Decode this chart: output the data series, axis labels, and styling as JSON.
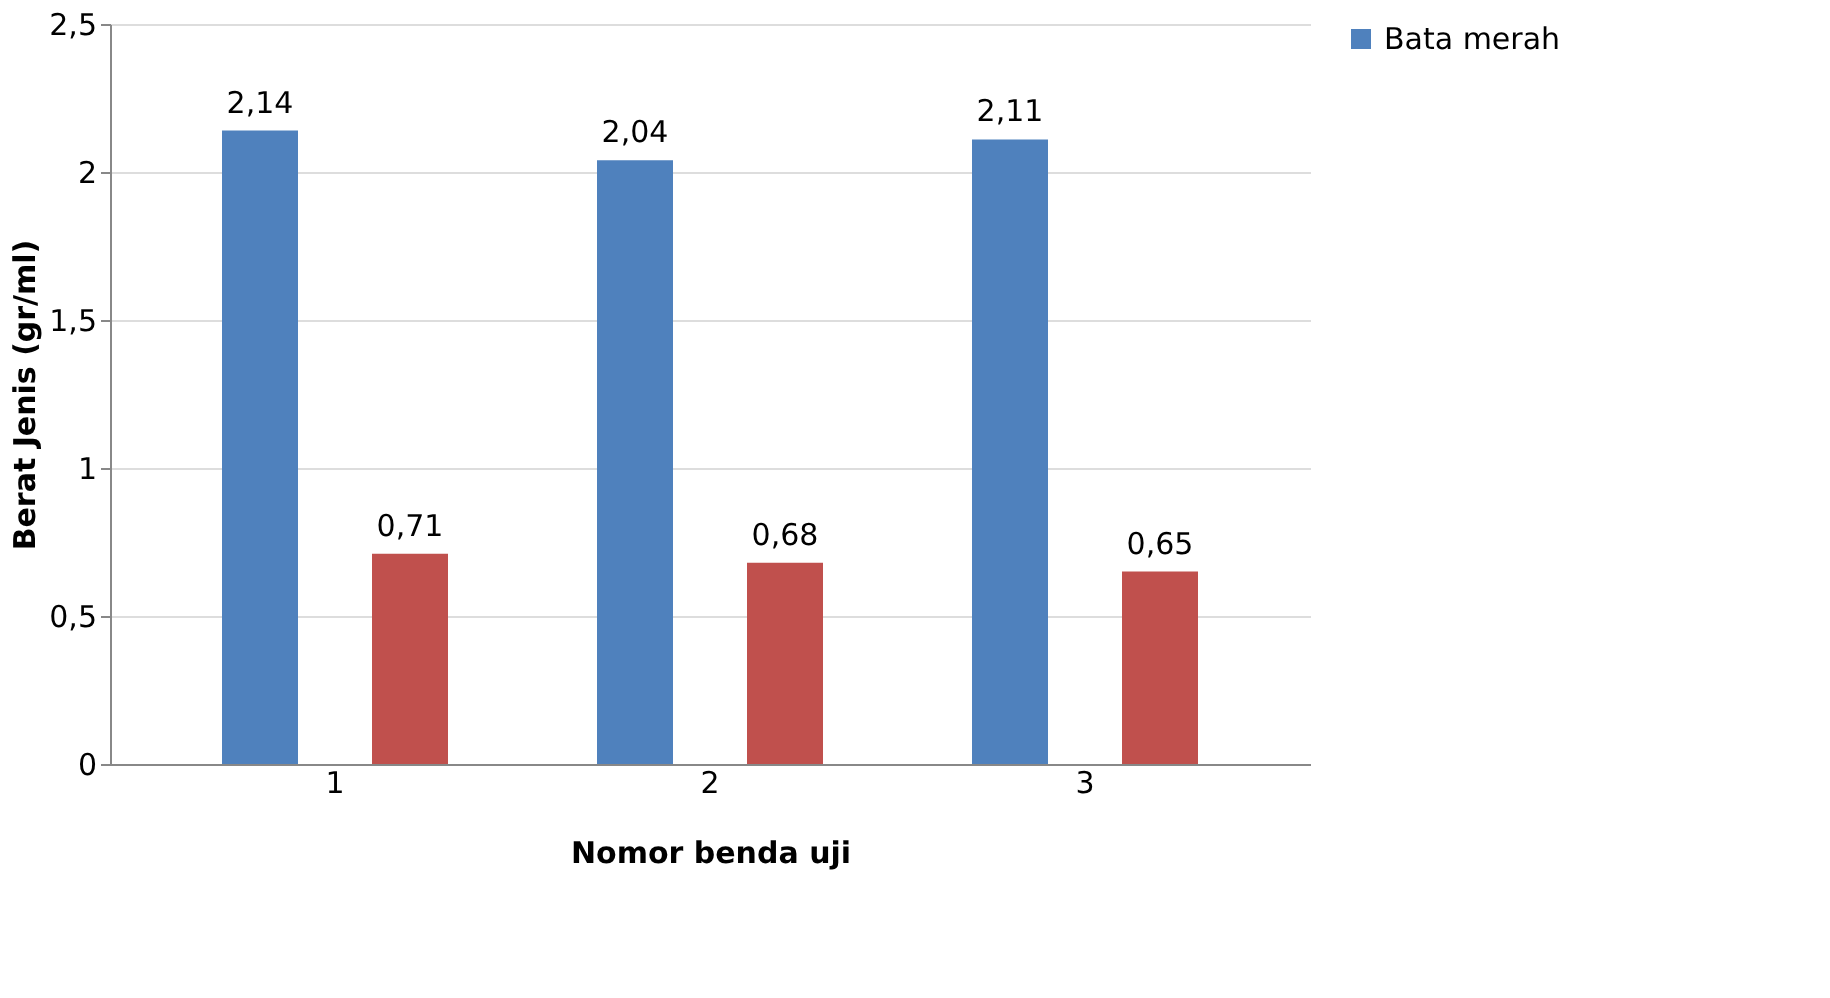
{
  "chart_data": {
    "type": "bar",
    "xlabel": "Nomor benda uji",
    "ylabel": "Berat Jenis (gr/ml)",
    "categories": [
      "1",
      "2",
      "3"
    ],
    "series": [
      {
        "name": "Bata merah",
        "color": "#4f81bd",
        "values": [
          2.14,
          2.04,
          2.11
        ],
        "value_labels": [
          "2,14",
          "2,04",
          "2,11"
        ]
      },
      {
        "color": "#c0504d",
        "values": [
          0.71,
          0.68,
          0.65
        ],
        "value_labels": [
          "0,71",
          "0,68",
          "0,65"
        ]
      }
    ],
    "ylim": [
      0,
      2.5
    ],
    "yticks": [
      0,
      {
        "value": 0.5,
        "label": "0,5"
      },
      1,
      {
        "value": 1.5,
        "label": "1,5"
      },
      2,
      {
        "value": 2.5,
        "label": "2,5"
      }
    ],
    "grid": "y",
    "legend": "right"
  }
}
